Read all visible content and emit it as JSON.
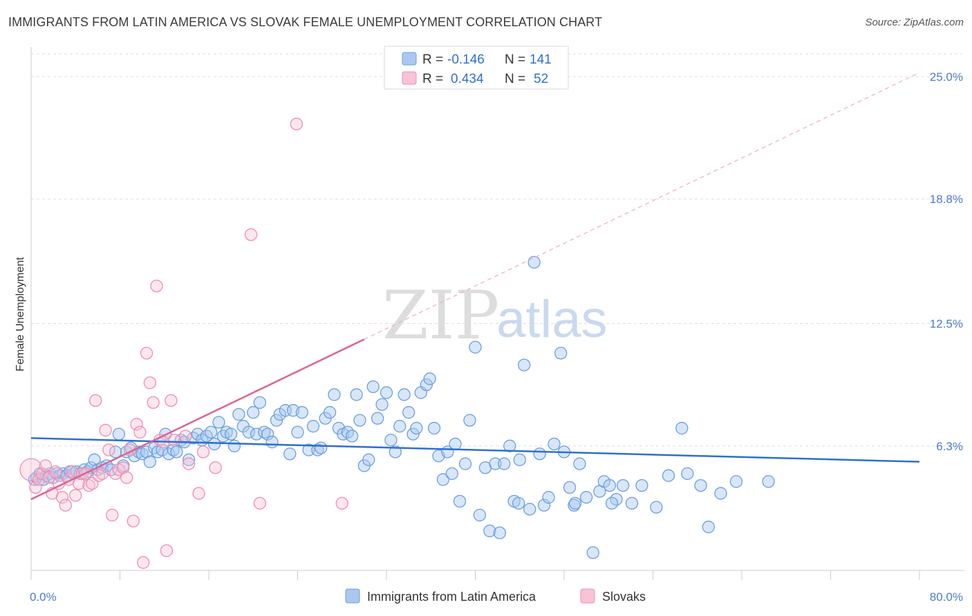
{
  "title": "IMMIGRANTS FROM LATIN AMERICA VS SLOVAK FEMALE UNEMPLOYMENT CORRELATION CHART",
  "source": "Source: ZipAtlas.com",
  "watermark": {
    "zip": "ZIP",
    "atlas": "atlas"
  },
  "colors": {
    "blue": "#6a9fe0",
    "blue_fill": "#a9c8f0",
    "pink": "#f08cb0",
    "pink_fill": "#f7c3d5",
    "blue_line": "#2d6fcf",
    "pink_line": "#e0608f"
  },
  "legend": {
    "rows": [
      {
        "r_label": "R =",
        "r_value": "-0.146",
        "n_label": "N =",
        "n_value": "141"
      },
      {
        "r_label": "R =",
        "r_value": "0.434",
        "n_label": "N =",
        "n_value": "52"
      }
    ]
  },
  "bottom_legend": [
    "Immigrants from Latin America",
    "Slovaks"
  ],
  "chart_data": {
    "type": "scatter",
    "ylabel": "Female Unemployment",
    "xlim": [
      0,
      80
    ],
    "ylim": [
      0,
      26.5
    ],
    "x_tick_labels": [
      "0.0%",
      "80.0%"
    ],
    "y_ticks": [
      6.3,
      12.5,
      18.8,
      25.0
    ],
    "y_tick_labels": [
      "6.3%",
      "12.5%",
      "18.8%",
      "25.0%"
    ],
    "grid": true,
    "series": [
      {
        "name": "Immigrants from Latin America",
        "color": "#6a9fe0",
        "trend": {
          "x": [
            0,
            80
          ],
          "y": [
            6.7,
            5.5
          ]
        },
        "points": [
          [
            0.3,
            4.6
          ],
          [
            0.5,
            4.7
          ],
          [
            0.8,
            4.9
          ],
          [
            1.1,
            4.6
          ],
          [
            1.4,
            4.8
          ],
          [
            1.7,
            4.9
          ],
          [
            2.0,
            4.7
          ],
          [
            2.3,
            4.9
          ],
          [
            2.6,
            4.8
          ],
          [
            2.9,
            4.9
          ],
          [
            3.2,
            4.8
          ],
          [
            3.5,
            5.0
          ],
          [
            3.8,
            4.9
          ],
          [
            4.1,
            5.0
          ],
          [
            4.4,
            4.9
          ],
          [
            4.8,
            5.1
          ],
          [
            5.1,
            5.0
          ],
          [
            5.4,
            5.2
          ],
          [
            5.7,
            5.6
          ],
          [
            6.0,
            5.1
          ],
          [
            6.4,
            5.2
          ],
          [
            6.8,
            5.3
          ],
          [
            7.2,
            5.1
          ],
          [
            7.6,
            6.0
          ],
          [
            7.9,
            6.9
          ],
          [
            8.3,
            5.3
          ],
          [
            8.6,
            6.0
          ],
          [
            9.0,
            6.2
          ],
          [
            9.3,
            5.8
          ],
          [
            9.7,
            6.0
          ],
          [
            10.0,
            5.9
          ],
          [
            10.4,
            6.0
          ],
          [
            10.7,
            5.5
          ],
          [
            11.1,
            6.2
          ],
          [
            11.4,
            6.0
          ],
          [
            11.8,
            6.1
          ],
          [
            12.1,
            6.9
          ],
          [
            12.4,
            5.9
          ],
          [
            12.8,
            6.1
          ],
          [
            13.1,
            6.0
          ],
          [
            13.5,
            6.6
          ],
          [
            13.8,
            6.5
          ],
          [
            14.2,
            5.6
          ],
          [
            14.6,
            6.7
          ],
          [
            15.0,
            6.9
          ],
          [
            15.4,
            6.6
          ],
          [
            15.8,
            6.8
          ],
          [
            16.2,
            7.0
          ],
          [
            16.5,
            6.4
          ],
          [
            16.9,
            7.5
          ],
          [
            17.3,
            6.8
          ],
          [
            17.6,
            7.0
          ],
          [
            18.0,
            6.9
          ],
          [
            18.3,
            6.3
          ],
          [
            18.7,
            7.9
          ],
          [
            19.1,
            7.3
          ],
          [
            19.6,
            7.0
          ],
          [
            20.0,
            8.0
          ],
          [
            20.3,
            6.9
          ],
          [
            20.6,
            8.5
          ],
          [
            21.0,
            7.0
          ],
          [
            21.3,
            6.9
          ],
          [
            21.7,
            6.5
          ],
          [
            22.1,
            7.6
          ],
          [
            22.4,
            7.9
          ],
          [
            22.9,
            8.1
          ],
          [
            23.3,
            5.9
          ],
          [
            23.6,
            8.1
          ],
          [
            24.0,
            7.0
          ],
          [
            24.4,
            8.0
          ],
          [
            25.0,
            6.1
          ],
          [
            25.4,
            7.3
          ],
          [
            25.8,
            6.1
          ],
          [
            26.1,
            6.2
          ],
          [
            26.5,
            7.7
          ],
          [
            26.9,
            8.0
          ],
          [
            27.3,
            8.9
          ],
          [
            27.7,
            7.2
          ],
          [
            28.1,
            6.9
          ],
          [
            28.5,
            7.0
          ],
          [
            28.9,
            6.8
          ],
          [
            29.3,
            8.9
          ],
          [
            29.6,
            7.6
          ],
          [
            30.0,
            5.3
          ],
          [
            30.4,
            5.6
          ],
          [
            30.8,
            9.3
          ],
          [
            31.2,
            7.7
          ],
          [
            31.6,
            8.4
          ],
          [
            32.0,
            9.0
          ],
          [
            32.4,
            6.6
          ],
          [
            32.8,
            6.0
          ],
          [
            33.2,
            7.3
          ],
          [
            33.6,
            8.9
          ],
          [
            34.0,
            8.0
          ],
          [
            34.4,
            6.9
          ],
          [
            34.7,
            7.2
          ],
          [
            35.1,
            9.0
          ],
          [
            35.6,
            9.4
          ],
          [
            35.9,
            9.7
          ],
          [
            36.3,
            7.2
          ],
          [
            36.7,
            5.8
          ],
          [
            37.1,
            4.6
          ],
          [
            37.5,
            6.0
          ],
          [
            37.9,
            4.9
          ],
          [
            38.2,
            6.4
          ],
          [
            38.6,
            3.5
          ],
          [
            39.1,
            5.4
          ],
          [
            39.5,
            7.6
          ],
          [
            40.0,
            11.3
          ],
          [
            40.4,
            2.8
          ],
          [
            40.9,
            5.2
          ],
          [
            41.3,
            2.0
          ],
          [
            41.8,
            5.4
          ],
          [
            42.2,
            1.9
          ],
          [
            42.6,
            5.4
          ],
          [
            43.1,
            6.3
          ],
          [
            43.5,
            3.5
          ],
          [
            44.0,
            5.6
          ],
          [
            44.4,
            10.4
          ],
          [
            44.9,
            3.1
          ],
          [
            45.3,
            15.6
          ],
          [
            45.8,
            5.9
          ],
          [
            46.2,
            3.3
          ],
          [
            46.6,
            3.7
          ],
          [
            47.1,
            6.4
          ],
          [
            47.7,
            11.0
          ],
          [
            48.0,
            6.0
          ],
          [
            48.5,
            4.2
          ],
          [
            48.9,
            3.3
          ],
          [
            49.4,
            5.4
          ],
          [
            50.0,
            3.7
          ],
          [
            50.6,
            0.9
          ],
          [
            51.2,
            4.0
          ],
          [
            51.6,
            4.5
          ],
          [
            52.1,
            4.3
          ],
          [
            52.7,
            3.6
          ],
          [
            53.3,
            4.3
          ],
          [
            54.1,
            3.4
          ],
          [
            55.0,
            4.3
          ],
          [
            56.3,
            3.2
          ],
          [
            57.4,
            4.8
          ],
          [
            58.6,
            7.2
          ],
          [
            59.1,
            4.9
          ],
          [
            60.3,
            4.3
          ],
          [
            61.0,
            2.2
          ],
          [
            62.1,
            3.9
          ],
          [
            63.5,
            4.5
          ],
          [
            66.4,
            4.5
          ],
          [
            52.3,
            3.4
          ],
          [
            43.9,
            3.4
          ],
          [
            49.0,
            3.4
          ]
        ]
      },
      {
        "name": "Slovaks",
        "color": "#f08cb0",
        "trend_solid": {
          "x": [
            0,
            30
          ],
          "y": [
            3.6,
            11.7
          ]
        },
        "trend_dashed": {
          "x": [
            30,
            80
          ],
          "y": [
            11.7,
            25.2
          ]
        },
        "points": [
          [
            0.0,
            5.1
          ],
          [
            0.4,
            4.2
          ],
          [
            0.7,
            4.6
          ],
          [
            1.0,
            4.9
          ],
          [
            1.3,
            5.3
          ],
          [
            1.6,
            4.7
          ],
          [
            1.9,
            3.9
          ],
          [
            2.2,
            5.0
          ],
          [
            2.5,
            4.4
          ],
          [
            2.8,
            3.7
          ],
          [
            3.1,
            3.3
          ],
          [
            3.4,
            4.6
          ],
          [
            3.7,
            5.0
          ],
          [
            4.0,
            3.8
          ],
          [
            4.3,
            4.4
          ],
          [
            4.6,
            4.9
          ],
          [
            4.9,
            4.9
          ],
          [
            5.2,
            4.3
          ],
          [
            5.5,
            4.4
          ],
          [
            5.8,
            8.6
          ],
          [
            6.1,
            4.8
          ],
          [
            6.4,
            4.9
          ],
          [
            6.7,
            7.1
          ],
          [
            7.0,
            6.1
          ],
          [
            7.3,
            2.8
          ],
          [
            7.6,
            4.9
          ],
          [
            7.9,
            5.1
          ],
          [
            8.3,
            5.2
          ],
          [
            8.6,
            4.7
          ],
          [
            8.9,
            6.1
          ],
          [
            9.2,
            2.5
          ],
          [
            9.5,
            7.4
          ],
          [
            9.8,
            7.0
          ],
          [
            10.1,
            0.4
          ],
          [
            10.4,
            11.0
          ],
          [
            10.7,
            9.5
          ],
          [
            11.0,
            8.5
          ],
          [
            11.3,
            14.4
          ],
          [
            11.6,
            6.6
          ],
          [
            11.9,
            6.5
          ],
          [
            12.2,
            1.0
          ],
          [
            12.6,
            8.6
          ],
          [
            12.9,
            6.6
          ],
          [
            13.9,
            6.8
          ],
          [
            14.2,
            5.4
          ],
          [
            15.1,
            3.9
          ],
          [
            15.5,
            6.0
          ],
          [
            16.6,
            5.2
          ],
          [
            19.8,
            17.0
          ],
          [
            20.6,
            3.4
          ],
          [
            23.9,
            22.6
          ],
          [
            28.0,
            3.4
          ]
        ]
      }
    ]
  }
}
